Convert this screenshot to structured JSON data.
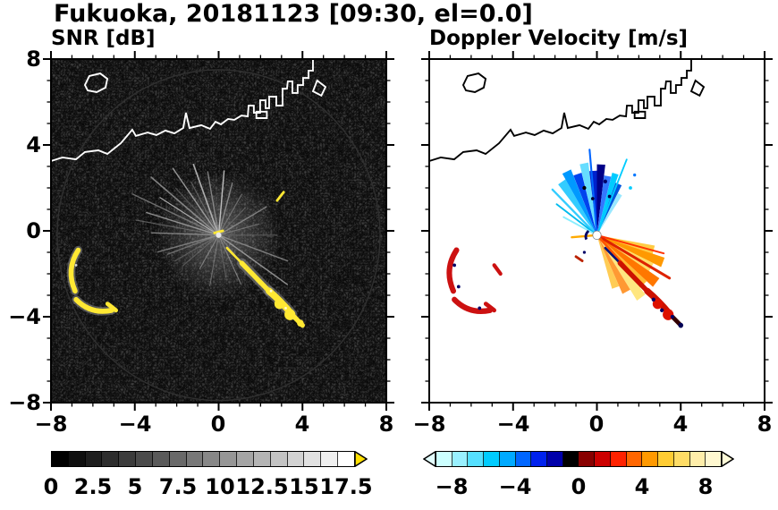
{
  "figure": {
    "title": "Fukuoka, 20181123 [09:30, el=0.0]"
  },
  "panels": {
    "snr": {
      "title": "SNR [dB]",
      "xtick_labels": [
        "−8",
        "−4",
        "0",
        "4",
        "8"
      ],
      "ytick_labels": [
        "8",
        "4",
        "0",
        "−4",
        "−8"
      ]
    },
    "velocity": {
      "title": "Doppler Velocity [m/s]",
      "xtick_labels": [
        "−8",
        "−4",
        "0",
        "4",
        "8"
      ]
    }
  },
  "colorbars": {
    "snr": {
      "tick_labels": [
        "0",
        "2.5",
        "5",
        "7.5",
        "10",
        "12.5",
        "15",
        "17.5"
      ],
      "colors": [
        "#000000",
        "#0f0f0f",
        "#1e1e1e",
        "#2d2d2d",
        "#3c3c3c",
        "#4b4b4b",
        "#5a5a5a",
        "#696969",
        "#787878",
        "#878787",
        "#969696",
        "#a5a5a5",
        "#b4b4b4",
        "#c3c3c3",
        "#d2d2d2",
        "#e1e1e1",
        "#f0f0f0",
        "#ffffff"
      ],
      "over_arrow_color": "#ffe000"
    },
    "velocity": {
      "tick_labels": [
        "−8",
        "−4",
        "0",
        "4",
        "8"
      ],
      "colors": [
        "#ccffff",
        "#99f0ff",
        "#55e0ff",
        "#00ccff",
        "#00aaff",
        "#0066ff",
        "#0022ee",
        "#0000aa",
        "#000000",
        "#880000",
        "#cc0000",
        "#ff2200",
        "#ff6600",
        "#ff9900",
        "#ffcc33",
        "#ffdd66",
        "#ffeeaa",
        "#fff8d0"
      ],
      "under_arrow_color": "#e4ffff",
      "over_arrow_color": "#fffbd8"
    }
  },
  "colors": {
    "echo_yellow": "#ffe833",
    "coast_left": "#ffffff",
    "coast_right": "#000000",
    "background_left": "#000000",
    "background_right": "#ffffff"
  },
  "chart_data": [
    {
      "type": "heatmap",
      "title": "SNR [dB]",
      "xlim": [
        -8,
        8
      ],
      "ylim": [
        -8,
        8
      ],
      "xticks": [
        -8,
        -4,
        0,
        4,
        8
      ],
      "yticks": [
        -8,
        -4,
        0,
        4,
        8
      ],
      "minor_tick_step": 1,
      "colorbar": {
        "label": "SNR [dB]",
        "range": [
          0,
          17.5
        ],
        "ticks": [
          0,
          2.5,
          5,
          7.5,
          10,
          12.5,
          15,
          17.5
        ],
        "colormap": "grayscale black-to-white with yellow over-range arrow"
      },
      "features": [
        "black background with faint speckle noise",
        "faint circular radar range boundary of radius ~7.7 centered near origin",
        "gray radial beam streaks emanating from radar at (0,0), strongest toward upper-left",
        "yellow high-SNR echo arc from about (0.3,-0.6) curving southeast to (3.8,-4.3)",
        "yellow echo patches west-southwest between (-7.1,-0.9) and (-4.9,-3.7)",
        "small yellow echo dash near (2.9,1.3)",
        "white coastline of Hakata Bay across northern half with port jetties and a small island near (-5.5,7)"
      ]
    },
    {
      "type": "heatmap",
      "title": "Doppler Velocity [m/s]",
      "xlim": [
        -8,
        8
      ],
      "ylim": [
        -8,
        8
      ],
      "xticks": [
        -8,
        -4,
        0,
        4,
        8
      ],
      "yticks": [
        -8,
        -4,
        0,
        4,
        8
      ],
      "minor_tick_step": 1,
      "colorbar": {
        "label": "Doppler Velocity [m/s]",
        "range": [
          -9,
          9
        ],
        "ticks": [
          -8,
          -4,
          0,
          4,
          8
        ],
        "colormap": "cyan-blue-navy-black for negative, dark red-red-orange-yellow for positive, pale arrows both ends"
      },
      "features": [
        "white background with black coastline (same coast as SNR panel)",
        "fan of negative (blue/cyan/navy, toward-radar) velocities north of radar at (0,0)",
        "fan of positive (orange/yellow/red, away-from-radar) velocities southeast of radar",
        "dark red echoes with navy flecks west-southwest between (-7.1,-0.9) and (-4.9,-3.7)",
        "red and navy mottled echo arc from (0.3,-0.6) southeast to (3.8,-4.3)"
      ]
    }
  ]
}
